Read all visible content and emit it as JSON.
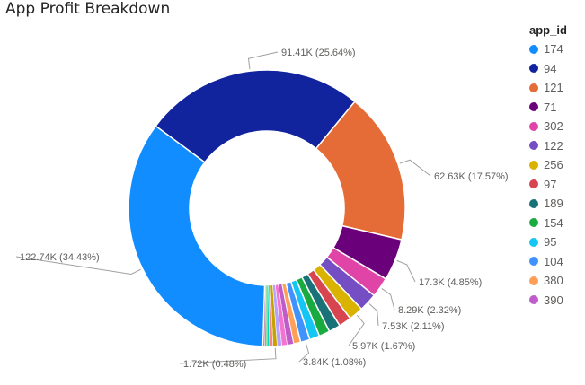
{
  "title": "App Profit Breakdown",
  "chart_data": {
    "type": "pie",
    "donut": true,
    "legend_title": "app_id",
    "legend_position": "right",
    "slices": [
      {
        "name": "94",
        "value": 91.41,
        "color": "#12239e",
        "label": "91.41K (25.64%)"
      },
      {
        "name": "121",
        "value": 62.63,
        "color": "#e66c37",
        "label": "62.63K (17.57%)"
      },
      {
        "name": "71",
        "value": 17.3,
        "color": "#6b007b",
        "label": "17.3K (4.85%)"
      },
      {
        "name": "302",
        "value": 8.29,
        "color": "#e044a7",
        "label": "8.29K (2.32%)"
      },
      {
        "name": "122",
        "value": 7.53,
        "color": "#744ec2",
        "label": "7.53K (2.11%)"
      },
      {
        "name": "256",
        "value": 5.97,
        "color": "#d9b300",
        "label": "5.97K (1.67%)"
      },
      {
        "name": "97",
        "value": 5.2,
        "color": "#d64550",
        "label": ""
      },
      {
        "name": "189",
        "value": 4.8,
        "color": "#197278",
        "label": ""
      },
      {
        "name": "154",
        "value": 4.5,
        "color": "#1aab40",
        "label": ""
      },
      {
        "name": "95",
        "value": 4.2,
        "color": "#15c6f4",
        "label": ""
      },
      {
        "name": "104",
        "value": 3.84,
        "color": "#4092ff",
        "label": "3.84K (1.08%)"
      },
      {
        "name": "380",
        "value": 3.0,
        "color": "#ffa058",
        "label": ""
      },
      {
        "name": "390",
        "value": 2.6,
        "color": "#be5dc9",
        "label": ""
      },
      {
        "name": "",
        "value": 2.2,
        "color": "#f472d0",
        "label": ""
      },
      {
        "name": "",
        "value": 1.9,
        "color": "#b5a1ff",
        "label": ""
      },
      {
        "name": "",
        "value": 1.72,
        "color": "#c4a200",
        "label": "1.72K (0.48%)"
      },
      {
        "name": "",
        "value": 1.4,
        "color": "#ff8080",
        "label": ""
      },
      {
        "name": "",
        "value": 1.1,
        "color": "#00dbbc",
        "label": ""
      },
      {
        "name": "",
        "value": 0.9,
        "color": "#5bd078",
        "label": ""
      },
      {
        "name": "",
        "value": 0.7,
        "color": "#a43b76",
        "label": ""
      },
      {
        "name": "174",
        "value": 122.74,
        "color": "#118dff",
        "label": "122.74K (34.43%)"
      }
    ]
  }
}
